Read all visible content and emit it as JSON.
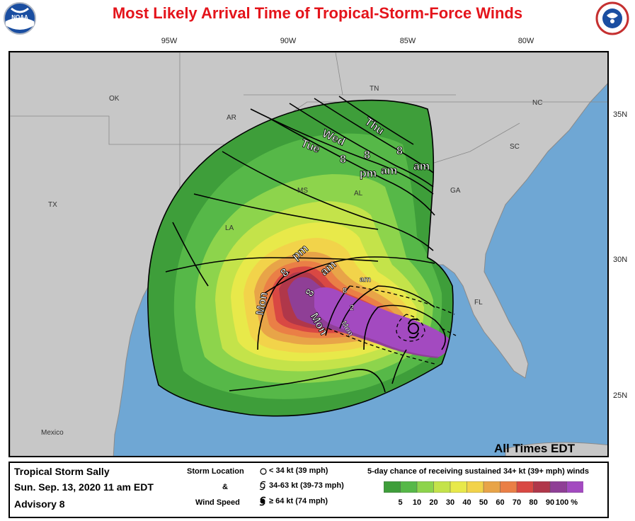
{
  "header": {
    "title": "Most Likely Arrival Time of Tropical-Storm-Force Winds"
  },
  "logos": {
    "left_icon": "noaa-logo-icon",
    "right_icon": "nws-logo-icon"
  },
  "axes": {
    "longitudes": [
      "95W",
      "90W",
      "85W",
      "80W"
    ],
    "latitudes": [
      "35N",
      "30N",
      "25N"
    ]
  },
  "map": {
    "state_labels": [
      "OK",
      "TN",
      "NC",
      "AR",
      "SC",
      "MS",
      "AL",
      "GA",
      "TX",
      "LA",
      "FL"
    ],
    "country_labels": [
      "Mexico"
    ],
    "time_labels": [
      "Thu",
      "8",
      "am",
      "Wed",
      "8",
      "am",
      "Tue",
      "8",
      "pm",
      "8",
      "pm",
      "8",
      "am",
      "Mon",
      "Mon",
      "8",
      "2",
      "Mon",
      "am"
    ],
    "storm_symbol_icon": "tropical-storm-symbol-icon",
    "footnote": "All Times EDT"
  },
  "footer": {
    "storm_name": "Tropical Storm Sally",
    "date": "Sun. Sep. 13, 2020  11 am EDT",
    "advisory": "Advisory 8",
    "location_heading": "Storm Location",
    "amp": "&",
    "wind_heading": "Wind Speed",
    "legend_items": [
      {
        "icon": "open-circle-icon",
        "label": "< 34 kt (39 mph)"
      },
      {
        "icon": "tropical-storm-icon",
        "label": "34-63 kt (39-73 mph)"
      },
      {
        "icon": "hurricane-icon",
        "label": "≥ 64 kt (74 mph)"
      }
    ],
    "probability_title": "5-day chance of receiving sustained 34+ kt (39+ mph) winds",
    "probability_labels": [
      "5",
      "10",
      "20",
      "30",
      "40",
      "50",
      "60",
      "70",
      "80",
      "90",
      "100 %"
    ],
    "probability_colors": [
      "#3e9e3a",
      "#56b848",
      "#8dd44c",
      "#c4e34a",
      "#e8e94a",
      "#f2d34a",
      "#e8a448",
      "#ea7f46",
      "#d94843",
      "#b0374a",
      "#8f3f96",
      "#a34ac0"
    ]
  }
}
